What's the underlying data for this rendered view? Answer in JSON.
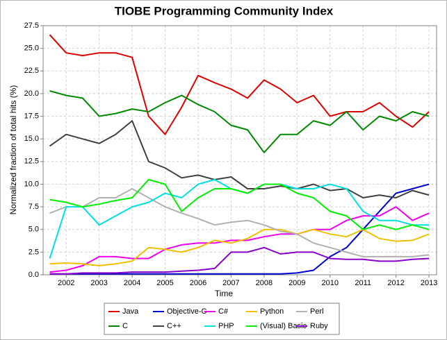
{
  "chart_data": {
    "type": "line",
    "title": "TIOBE Programming Community Index",
    "x_label": "Time",
    "y_label": "Normalized fraction of total hits (%)",
    "x": [
      2001.5,
      2002,
      2002.5,
      2003,
      2003.5,
      2004,
      2004.5,
      2005,
      2005.5,
      2006,
      2006.5,
      2007,
      2007.5,
      2008,
      2008.5,
      2009,
      2009.5,
      2010,
      2010.5,
      2011,
      2011.5,
      2012,
      2012.5,
      2013
    ],
    "xlim": [
      2001.3,
      2013.23
    ],
    "xticks": [
      2002,
      2003,
      2004,
      2005,
      2006,
      2007,
      2008,
      2009,
      2010,
      2011,
      2012,
      2013
    ],
    "ylim": [
      0,
      27.5
    ],
    "yticks": [
      {
        "value": 0,
        "label": "0.0"
      },
      2.5,
      {
        "value": 5,
        "label": "5.0"
      },
      7.5,
      {
        "value": 10,
        "label": "10.0"
      },
      12.5,
      {
        "value": 15,
        "label": "15.0"
      },
      17.5,
      {
        "value": 20,
        "label": "20.0"
      },
      22.5,
      {
        "value": 25,
        "label": "25.0"
      },
      27.5
    ],
    "grid": true,
    "legend": "bottom",
    "series": [
      {
        "name": "Java",
        "color": "#dd0000",
        "values": [
          26.5,
          24.5,
          24.2,
          24.5,
          24.5,
          24,
          17.5,
          15.5,
          18.5,
          22,
          21.2,
          20.5,
          19.5,
          21.5,
          20.5,
          19,
          19.8,
          17.5,
          18,
          18,
          19,
          17.5,
          16.3,
          18
        ]
      },
      {
        "name": "Objective-C",
        "color": "#0000cc",
        "values": [
          0.1,
          0.1,
          0.1,
          0.1,
          0.1,
          0.1,
          0.1,
          0.1,
          0.1,
          0.1,
          0.1,
          0.1,
          0.1,
          0.1,
          0.1,
          0.2,
          0.5,
          2,
          3,
          5,
          7,
          9,
          9.5,
          10
        ]
      },
      {
        "name": "C#",
        "color": "#ee00ee",
        "values": [
          0.3,
          0.5,
          1,
          2,
          2,
          1.8,
          1.8,
          2.8,
          3.3,
          3.5,
          3.5,
          3.8,
          3.8,
          4.2,
          4.5,
          4.5,
          5,
          5,
          6,
          6.5,
          6.5,
          7.5,
          6,
          6.8
        ]
      },
      {
        "name": "Python",
        "color": "#f0c000",
        "values": [
          1.2,
          1.3,
          1.2,
          1,
          1.2,
          1.5,
          3,
          2.8,
          2.5,
          3,
          3.8,
          3.5,
          4,
          5,
          5,
          4.5,
          5,
          4.5,
          4.2,
          5,
          4,
          3.7,
          3.8,
          4.5
        ]
      },
      {
        "name": "Perl",
        "color": "#b0b0b0",
        "values": [
          6.8,
          7.5,
          7.5,
          8.5,
          8.5,
          9.5,
          8.5,
          7.5,
          6.8,
          6.2,
          5.5,
          5.8,
          6,
          5.5,
          4.8,
          4.5,
          3.5,
          3,
          2.5,
          2,
          2,
          2,
          2,
          2.2
        ]
      },
      {
        "name": "C",
        "color": "#008800",
        "values": [
          20.3,
          19.8,
          19.5,
          17.5,
          17.8,
          18.3,
          18,
          19,
          19.8,
          18.8,
          18,
          16.5,
          16,
          13.5,
          15.5,
          15.5,
          17,
          16.5,
          18,
          16,
          17.5,
          17,
          18,
          17.5
        ]
      },
      {
        "name": "C++",
        "color": "#404040",
        "values": [
          14.2,
          15.5,
          15,
          14.5,
          15.5,
          17,
          12.5,
          11.8,
          10.7,
          11,
          10.5,
          10.8,
          9.5,
          9.5,
          9.8,
          9.5,
          10,
          9.3,
          9.5,
          8.5,
          8.8,
          8.5,
          9.3,
          8.8
        ]
      },
      {
        "name": "PHP",
        "color": "#00e0e0",
        "values": [
          1.8,
          7.5,
          7.5,
          5.5,
          6.5,
          7.5,
          8,
          9,
          8.5,
          10,
          10.5,
          9.5,
          9,
          10,
          10,
          9.5,
          9.5,
          10,
          9.5,
          7,
          6,
          6,
          5.5,
          5.5
        ]
      },
      {
        "name": "(Visual) Basic",
        "color": "#00ee00",
        "values": [
          8.3,
          8,
          7.5,
          7.8,
          8.2,
          8.5,
          10.5,
          10,
          7,
          8.5,
          9.5,
          9.5,
          9,
          10,
          10,
          9,
          8.5,
          7,
          6.5,
          5,
          5.5,
          5,
          5.5,
          5
        ]
      },
      {
        "name": "Ruby",
        "color": "#8800cc",
        "values": [
          0.1,
          0.1,
          0.2,
          0.2,
          0.2,
          0.3,
          0.3,
          0.3,
          0.4,
          0.5,
          0.7,
          2.5,
          2.5,
          3,
          2.3,
          2.5,
          2.5,
          1.8,
          1.7,
          1.7,
          1.5,
          1.5,
          1.7,
          1.8
        ]
      }
    ]
  }
}
